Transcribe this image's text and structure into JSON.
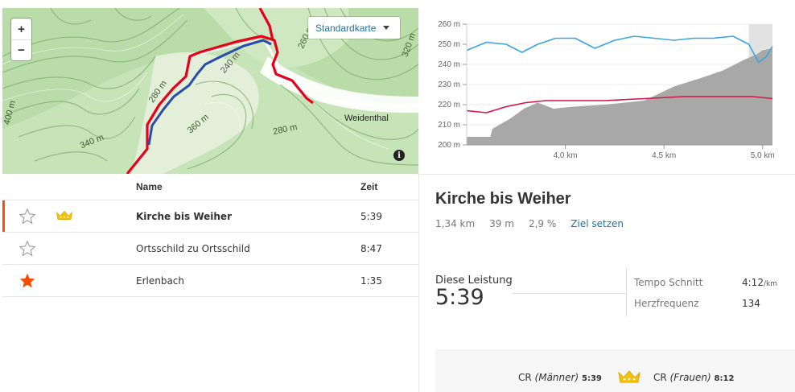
{
  "map": {
    "zoom_in": "+",
    "zoom_out": "−",
    "map_type": "Standardkarte",
    "town": "Weidenthal",
    "info": "i",
    "contour_labels": [
      "260 m",
      "320 m",
      "240 m",
      "280 m",
      "400 m",
      "340 m",
      "360 m",
      "280 m"
    ]
  },
  "chart_data": {
    "type": "area",
    "title": "",
    "xlabel": "",
    "ylabel": "",
    "ylim": [
      200,
      260
    ],
    "xlim": [
      3.5,
      5.05
    ],
    "y_ticks": [
      "200 m",
      "210 m",
      "220 m",
      "230 m",
      "240 m",
      "250 m",
      "260 m"
    ],
    "x_ticks": [
      "4,0 km",
      "4,5 km",
      "5,0 km"
    ],
    "series": [
      {
        "name": "",
        "color": "#a8a8a8",
        "x": [
          3.5,
          3.62,
          3.63,
          3.72,
          3.79,
          3.86,
          3.94,
          4.04,
          4.2,
          4.4,
          4.55,
          4.68,
          4.8,
          4.9,
          4.97,
          5.0,
          5.05
        ],
        "values": [
          204,
          204,
          208,
          213,
          218,
          221,
          218,
          219,
          220,
          222,
          229,
          233,
          237,
          242,
          245,
          247,
          248
        ]
      },
      {
        "name": "",
        "color": "#3aa6dd",
        "x": [
          3.5,
          3.6,
          3.7,
          3.78,
          3.86,
          3.95,
          4.05,
          4.15,
          4.25,
          4.35,
          4.45,
          4.55,
          4.65,
          4.75,
          4.85,
          4.93,
          4.98,
          5.02,
          5.05
        ],
        "values": [
          247,
          251,
          250,
          246,
          250,
          253,
          253,
          248,
          252,
          254,
          253,
          252,
          253,
          253,
          254,
          250,
          241,
          244,
          249
        ]
      },
      {
        "name": "",
        "color": "#d6134b",
        "x": [
          3.5,
          3.6,
          3.7,
          3.8,
          3.9,
          4.0,
          4.2,
          4.4,
          4.6,
          4.8,
          4.95,
          5.05
        ],
        "values": [
          217,
          216,
          219,
          221,
          222,
          222,
          222,
          223,
          224,
          224,
          224,
          223
        ]
      }
    ],
    "bands": [
      {
        "from": 4.93,
        "to": 5.05
      }
    ]
  },
  "segments": {
    "header": {
      "name": "Name",
      "time": "Zeit"
    },
    "rows": [
      {
        "name": "Kirche bis Weiher",
        "time": "5:39",
        "starred": false,
        "crown": true,
        "active": true
      },
      {
        "name": "Ortsschild zu Ortsschild",
        "time": "8:47",
        "starred": false,
        "crown": false,
        "active": false
      },
      {
        "name": "Erlenbach",
        "time": "1:35",
        "starred": true,
        "crown": false,
        "active": false
      }
    ]
  },
  "detail": {
    "title": "Kirche bis Weiher",
    "distance": "1,34 km",
    "elev": "39 m",
    "grade": "2,9 %",
    "goal": "Ziel setzen",
    "effort_label": "Diese Leistung",
    "effort_time": "5:39",
    "pace_label": "Tempo Schnitt",
    "pace_value": "4:12",
    "pace_unit": "/km",
    "hr_label": "Herzfrequenz",
    "hr_value": "134",
    "cr_men_label": "CR",
    "cr_men_sex": "(Männer)",
    "cr_men_time": "5:39",
    "cr_women_label": "CR",
    "cr_women_sex": "(Frauen)",
    "cr_women_time": "8:12"
  },
  "colors": {
    "accent": "#fc4c02",
    "link": "#1a73a8",
    "crown": "#f5c20b",
    "route_red": "#e6001c",
    "route_blue": "#2a4ea8"
  }
}
